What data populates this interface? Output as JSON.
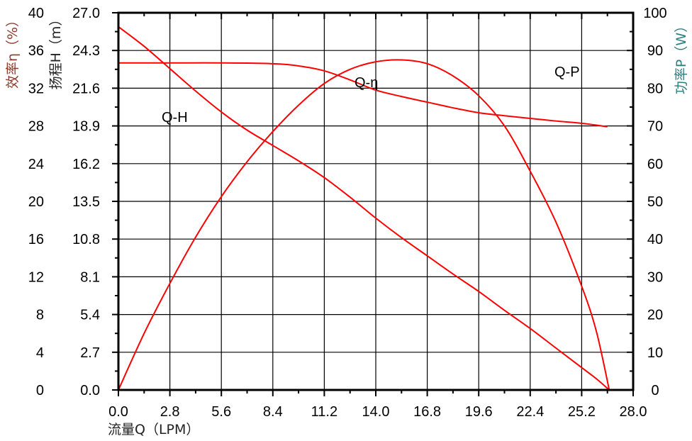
{
  "chart_data": {
    "type": "line",
    "xlabel": "流量Q（LPM）",
    "x_ticks": [
      "0.0",
      "2.8",
      "5.6",
      "8.4",
      "11.2",
      "14.0",
      "16.8",
      "19.6",
      "22.4",
      "25.2",
      "28.0"
    ],
    "xlim": [
      0,
      28
    ],
    "grid": true,
    "axes": {
      "efficiency": {
        "label": "效率η（%）",
        "ylim": [
          0,
          40
        ],
        "ticks": [
          "0",
          "4",
          "8",
          "12",
          "16",
          "20",
          "24",
          "28",
          "32",
          "36",
          "40"
        ],
        "color": "#8b3a2a"
      },
      "head": {
        "label": "扬程H（m）",
        "ylim": [
          0,
          27
        ],
        "ticks": [
          "0.0",
          "2.7",
          "5.4",
          "8.1",
          "10.8",
          "13.5",
          "16.2",
          "18.9",
          "21.6",
          "24.3",
          "27.0"
        ],
        "color": "#222222"
      },
      "power": {
        "label": "功率P（W）",
        "ylim": [
          0,
          100
        ],
        "ticks": [
          "0",
          "10",
          "20",
          "30",
          "40",
          "50",
          "60",
          "70",
          "80",
          "90",
          "100"
        ],
        "color": "#2a7f7f"
      }
    },
    "series": [
      {
        "name": "Q-H",
        "axis": "head",
        "color": "#ff0000",
        "x": [
          0,
          1.4,
          2.8,
          4.2,
          5.6,
          7.0,
          8.4,
          9.8,
          11.2,
          12.6,
          14.0,
          15.4,
          16.8,
          18.2,
          19.6,
          21.0,
          22.4,
          23.8,
          25.2,
          26.0,
          26.7
        ],
        "y": [
          26.0,
          24.6,
          23.0,
          21.4,
          19.9,
          18.6,
          17.5,
          16.4,
          15.2,
          13.8,
          12.3,
          10.9,
          9.6,
          8.3,
          7.05,
          5.7,
          4.4,
          3.0,
          1.6,
          0.8,
          0
        ]
      },
      {
        "name": "Q-P",
        "axis": "power",
        "color": "#ff0000",
        "x": [
          0,
          2.8,
          5.6,
          8.4,
          9.8,
          11.2,
          12.6,
          14.0,
          15.4,
          16.8,
          18.2,
          19.6,
          21.0,
          22.4,
          23.8,
          25.2,
          26.6
        ],
        "y": [
          86.7,
          86.7,
          86.7,
          86.5,
          85.9,
          84.6,
          82.2,
          79.5,
          77.8,
          76.3,
          74.8,
          73.5,
          72.7,
          72.0,
          71.3,
          70.7,
          69.8
        ]
      },
      {
        "name": "Q-η",
        "axis": "efficiency",
        "color": "#ff0000",
        "x": [
          0,
          1.4,
          2.8,
          4.2,
          5.6,
          7.0,
          8.4,
          9.8,
          11.2,
          12.6,
          14.0,
          15.4,
          16.8,
          18.2,
          19.6,
          21.0,
          22.4,
          23.8,
          25.2,
          26.0,
          26.7
        ],
        "y": [
          0,
          6.0,
          11.3,
          16.2,
          20.5,
          24.2,
          27.4,
          30.2,
          32.5,
          34.0,
          34.8,
          35.0,
          34.6,
          33.3,
          31.2,
          28.0,
          23.2,
          17.8,
          11.0,
          6.2,
          0
        ]
      }
    ],
    "annotations": [
      {
        "text": "Q-H",
        "x": 2.2,
        "y_head": 20.0
      },
      {
        "text": "Q-η",
        "x": 12.9,
        "y_head": 22.3
      },
      {
        "text": "Q-P",
        "x": 23.5,
        "y_head": 23.1
      }
    ]
  }
}
